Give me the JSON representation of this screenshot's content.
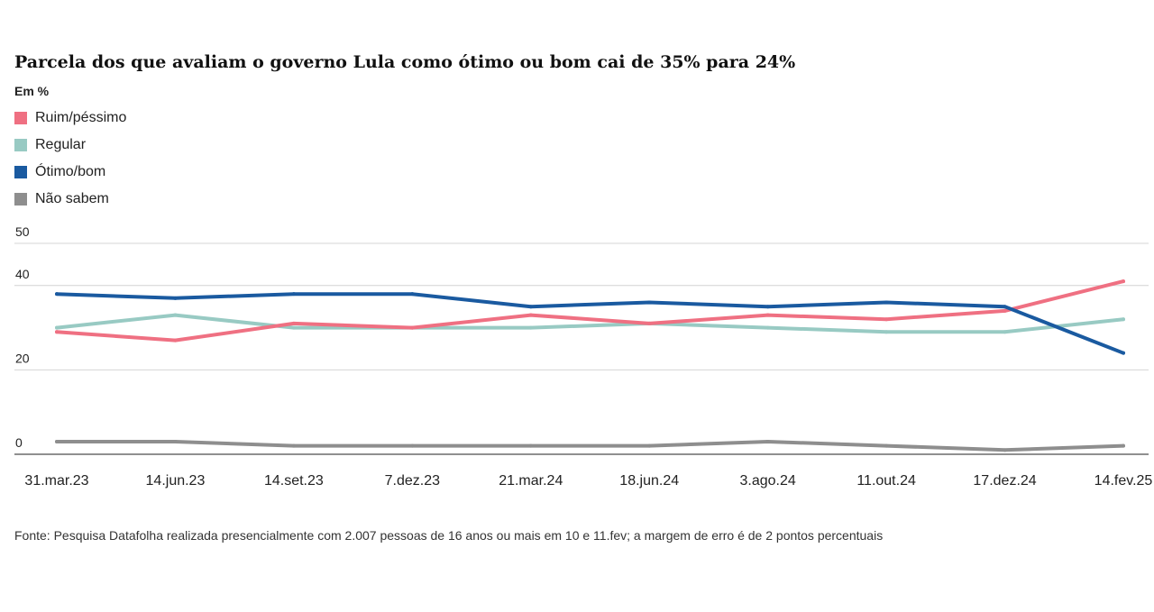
{
  "header": {
    "title": "Parcela dos que avaliam o governo Lula como ótimo ou bom cai de 35% para 24%",
    "unit": "Em %"
  },
  "footer": {
    "source": "Fonte: Pesquisa Datafolha realizada presencialmente com 2.007 pessoas de 16 anos ou mais em 10 e 11.fev; a margem de erro é de 2 pontos percentuais"
  },
  "colors": {
    "ruim": "#ef7082",
    "regular": "#98cac3",
    "otimo": "#1a5aa0",
    "nao_sabem": "#8e8e8e",
    "grid": "#d4d4d4",
    "baseline": "#222222"
  },
  "chart_data": {
    "type": "line",
    "title": "Parcela dos que avaliam o governo Lula como ótimo ou bom cai de 35% para 24%",
    "ylabel": "Em %",
    "categories": [
      "31.mar.23",
      "14.jun.23",
      "14.set.23",
      "7.dez.23",
      "21.mar.24",
      "18.jun.24",
      "3.ago.24",
      "11.out.24",
      "17.dez.24",
      "14.fev.25"
    ],
    "ylim": [
      0,
      50
    ],
    "yticks": [
      0,
      20,
      40,
      50
    ],
    "grid": true,
    "legend_placement": "top-left",
    "series": [
      {
        "key": "ruim",
        "name": "Ruim/péssimo",
        "values": [
          29,
          27,
          31,
          30,
          33,
          31,
          33,
          32,
          34,
          41
        ]
      },
      {
        "key": "regular",
        "name": "Regular",
        "values": [
          30,
          33,
          30,
          30,
          30,
          31,
          30,
          29,
          29,
          32
        ]
      },
      {
        "key": "otimo",
        "name": "Ótimo/bom",
        "values": [
          38,
          37,
          38,
          38,
          35,
          36,
          35,
          36,
          35,
          24
        ]
      },
      {
        "key": "nao_sabem",
        "name": "Não sabem",
        "values": [
          3,
          3,
          2,
          2,
          2,
          2,
          3,
          2,
          1,
          2
        ]
      }
    ]
  }
}
